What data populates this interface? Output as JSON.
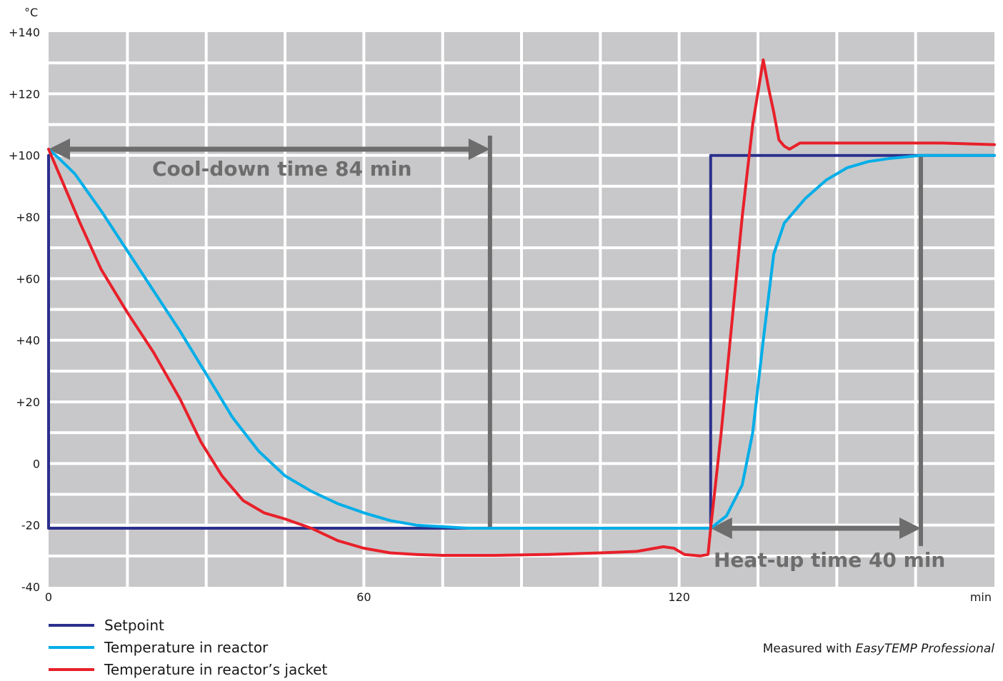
{
  "chart_data": {
    "type": "line",
    "y_unit_label": "°C",
    "x_unit_label": "min",
    "xlim": [
      0,
      180
    ],
    "ylim": [
      -40,
      140
    ],
    "x_ticks": [
      {
        "value": 0,
        "label": "0"
      },
      {
        "value": 60,
        "label": "60"
      },
      {
        "value": 120,
        "label": "120"
      }
    ],
    "y_ticks": [
      {
        "value": 140,
        "label": "+140"
      },
      {
        "value": 120,
        "label": "+120"
      },
      {
        "value": 100,
        "label": "+100"
      },
      {
        "value": 80,
        "label": "+80"
      },
      {
        "value": 60,
        "label": "+60"
      },
      {
        "value": 40,
        "label": "+40"
      },
      {
        "value": 20,
        "label": "+20"
      },
      {
        "value": 0,
        "label": "0"
      },
      {
        "value": -20,
        "label": "-20"
      },
      {
        "value": -40,
        "label": "-40"
      }
    ],
    "grid": true,
    "plot_background": "#c8c8ca",
    "grid_color": "#ffffff",
    "series": [
      {
        "name": "Setpoint",
        "color": "#2b2f8c",
        "points": [
          [
            0,
            -21
          ],
          [
            0,
            100
          ],
          [
            0,
            -21
          ],
          [
            126,
            -21
          ],
          [
            126,
            100
          ],
          [
            180,
            100
          ]
        ]
      },
      {
        "name": "Temperature in reactor",
        "color": "#00aee8",
        "points": [
          [
            0,
            102
          ],
          [
            2,
            99
          ],
          [
            5,
            94
          ],
          [
            10,
            82
          ],
          [
            15,
            69
          ],
          [
            20,
            56
          ],
          [
            25,
            43
          ],
          [
            30,
            29
          ],
          [
            35,
            15
          ],
          [
            40,
            4
          ],
          [
            45,
            -4
          ],
          [
            50,
            -9
          ],
          [
            55,
            -13
          ],
          [
            60,
            -16
          ],
          [
            65,
            -18.5
          ],
          [
            70,
            -20
          ],
          [
            75,
            -20.5
          ],
          [
            80,
            -21
          ],
          [
            84,
            -21
          ],
          [
            126,
            -21
          ],
          [
            129,
            -17
          ],
          [
            132,
            -7
          ],
          [
            134,
            10
          ],
          [
            136,
            40
          ],
          [
            138,
            68
          ],
          [
            140,
            78
          ],
          [
            144,
            86
          ],
          [
            148,
            92
          ],
          [
            152,
            96
          ],
          [
            156,
            98
          ],
          [
            160,
            99
          ],
          [
            166,
            100
          ],
          [
            180,
            100
          ]
        ]
      },
      {
        "name": "Temperature in reactor’s jacket",
        "color": "#e8202a",
        "points": [
          [
            0,
            102
          ],
          [
            3,
            90
          ],
          [
            6,
            78
          ],
          [
            10,
            63
          ],
          [
            15,
            49
          ],
          [
            20,
            36
          ],
          [
            25,
            21
          ],
          [
            29,
            7
          ],
          [
            33,
            -4
          ],
          [
            37,
            -12
          ],
          [
            41,
            -16
          ],
          [
            45,
            -18
          ],
          [
            50,
            -21
          ],
          [
            55,
            -25
          ],
          [
            60,
            -27.5
          ],
          [
            65,
            -29
          ],
          [
            70,
            -29.5
          ],
          [
            75,
            -29.8
          ],
          [
            85,
            -29.8
          ],
          [
            95,
            -29.5
          ],
          [
            105,
            -29
          ],
          [
            112,
            -28.5
          ],
          [
            117,
            -27
          ],
          [
            119,
            -27.5
          ],
          [
            121,
            -29.5
          ],
          [
            124,
            -30
          ],
          [
            125.5,
            -29.5
          ],
          [
            126,
            -21
          ],
          [
            128,
            10
          ],
          [
            130,
            45
          ],
          [
            132,
            80
          ],
          [
            134,
            110
          ],
          [
            136,
            131
          ],
          [
            137,
            122
          ],
          [
            138,
            114
          ],
          [
            139,
            105
          ],
          [
            140,
            103
          ],
          [
            141,
            102
          ],
          [
            143,
            104
          ],
          [
            150,
            104
          ],
          [
            160,
            104
          ],
          [
            170,
            104
          ],
          [
            180,
            103.5
          ]
        ]
      }
    ],
    "annotations": [
      {
        "id": "cooldown",
        "text": "Cool-down time 84 min",
        "x_start": 0,
        "x_end": 84,
        "y": 102
      },
      {
        "id": "heatup",
        "text": "Heat-up time 40 min",
        "x_start": 126,
        "x_end": 166,
        "y": -21
      }
    ],
    "annotation_color": "#6d6d6d"
  },
  "legend": [
    {
      "label": "Setpoint",
      "color": "#2b2f8c"
    },
    {
      "label": "Temperature in reactor",
      "color": "#00aee8"
    },
    {
      "label": "Temperature in reactor’s jacket",
      "color": "#e8202a"
    }
  ],
  "footnote": {
    "prefix": "Measured with ",
    "product": "EasyTEMP Professional"
  }
}
